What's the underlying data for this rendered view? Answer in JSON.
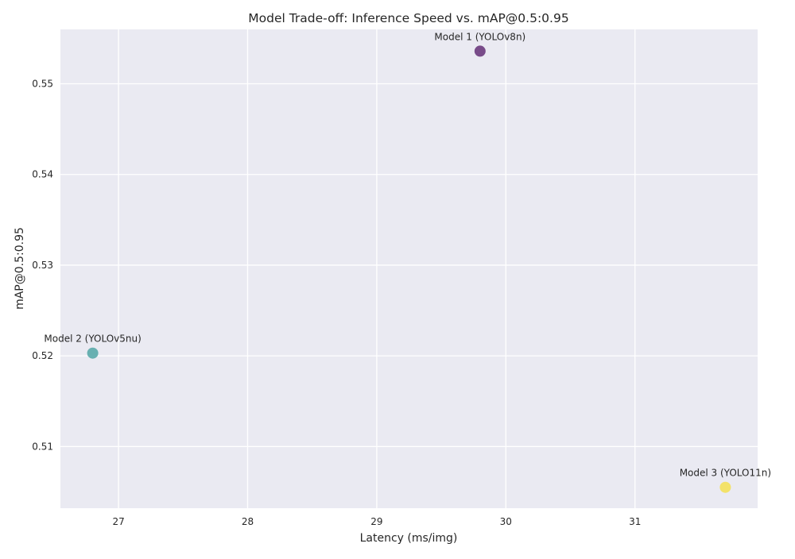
{
  "chart_data": {
    "type": "scatter",
    "title": "Model Trade-off: Inference Speed vs. mAP@0.5:0.95",
    "xlabel": "Latency (ms/img)",
    "ylabel": "mAP@0.5:0.95",
    "xlim": [
      26.55,
      31.95
    ],
    "ylim": [
      0.5032,
      0.556
    ],
    "xticks": [
      27,
      28,
      29,
      30,
      31
    ],
    "yticks": [
      0.51,
      0.52,
      0.53,
      0.54,
      0.55
    ],
    "grid": true,
    "legend": "none",
    "points": [
      {
        "label": "Model 1 (YOLOv8n)",
        "x": 29.8,
        "y": 0.5536,
        "color": "#6b3a7d"
      },
      {
        "label": "Model 2 (YOLOv5nu)",
        "x": 26.8,
        "y": 0.5203,
        "color": "#5aaaaa"
      },
      {
        "label": "Model 3 (YOLO11n)",
        "x": 31.7,
        "y": 0.5055,
        "color": "#f4e15a"
      }
    ]
  },
  "colors": {
    "plot_background": "#eaeaf2",
    "grid": "#ffffff",
    "text": "#262626"
  }
}
